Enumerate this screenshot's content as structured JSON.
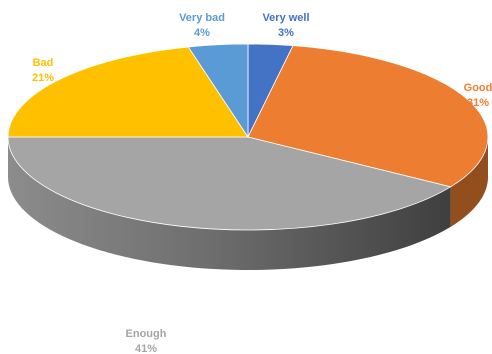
{
  "chart_data": {
    "type": "pie",
    "title": "",
    "style": "3d",
    "slices": [
      {
        "name": "Very well",
        "value": 3,
        "percent_label": "3%",
        "color": "#4472C4",
        "label_color": "#4472C4"
      },
      {
        "name": "Good",
        "value": 31,
        "percent_label": "31%",
        "color": "#ED7D31",
        "label_color": "#ED7D31"
      },
      {
        "name": "Enough",
        "value": 41,
        "percent_label": "41%",
        "color": "#A5A5A5",
        "label_color": "#A5A5A5"
      },
      {
        "name": "Bad",
        "value": 21,
        "percent_label": "21%",
        "color": "#FFC000",
        "label_color": "#FFC000"
      },
      {
        "name": "Very bad",
        "value": 4,
        "percent_label": "4%",
        "color": "#5B9BD5",
        "label_color": "#5B9BD5"
      }
    ]
  }
}
